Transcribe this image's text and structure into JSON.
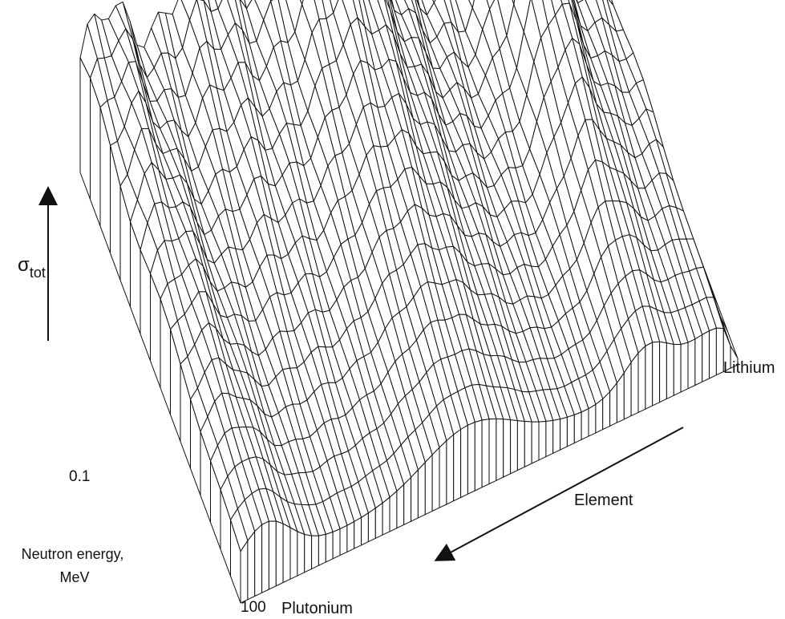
{
  "chart_data": {
    "type": "surface",
    "title": "",
    "z_axis": {
      "label": "σ",
      "label_subscript": "tot"
    },
    "x_axis": {
      "label_line1": "Neutron energy,",
      "label_line2": "MeV",
      "tick_low": "0.1",
      "tick_high": "100"
    },
    "y_axis": {
      "label": "Element",
      "start_label": "Lithium",
      "end_label": "Plutonium"
    },
    "grid": true,
    "colors": {
      "line": "#111111",
      "face": "#ffffff",
      "background": "#ffffff"
    }
  }
}
